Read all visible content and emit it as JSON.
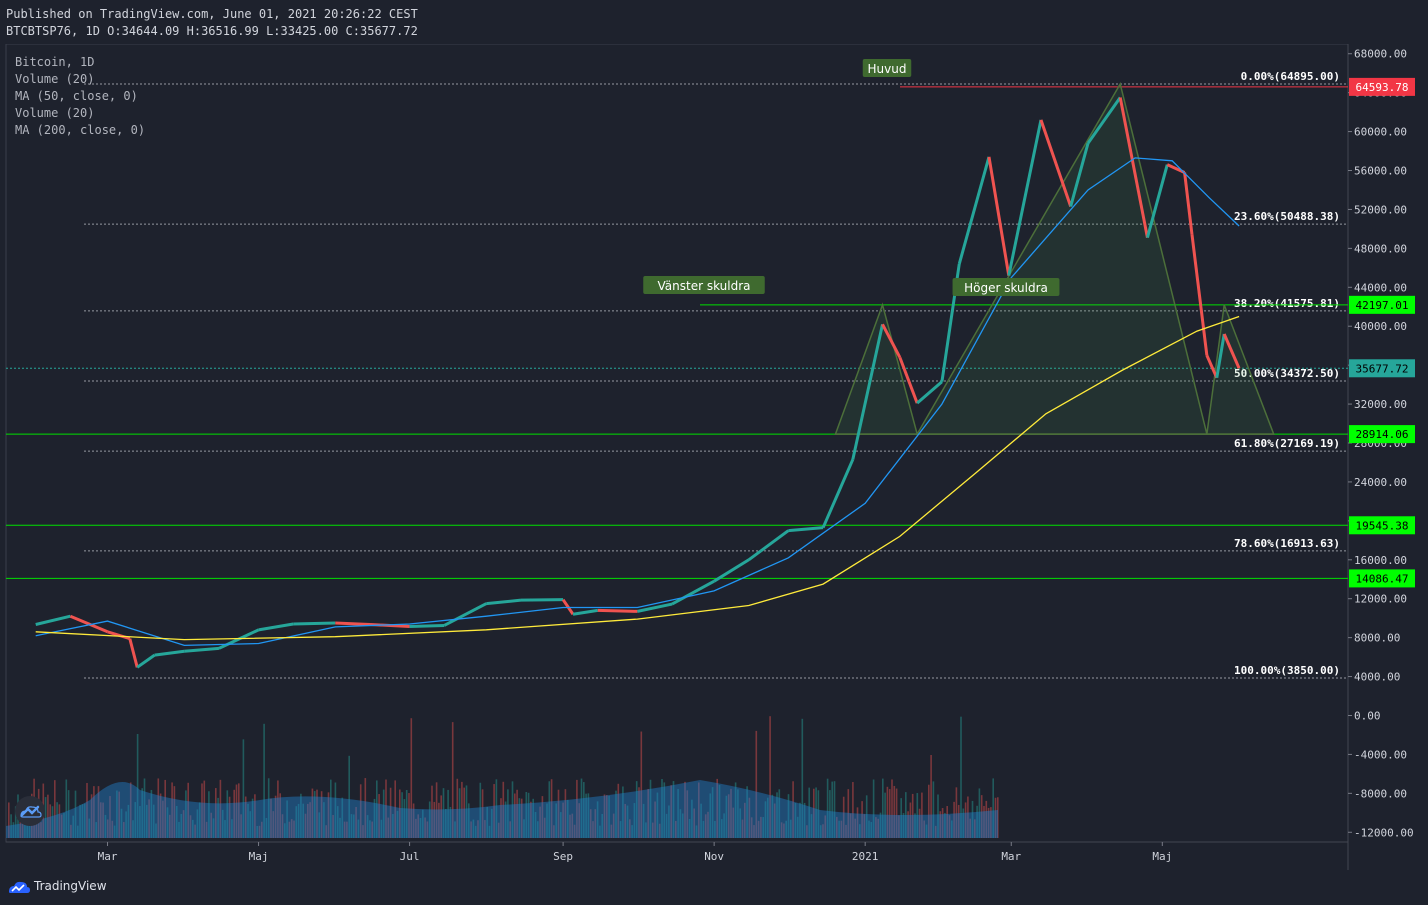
{
  "header": {
    "published": "Published on TradingView.com, June 01, 2021 20:26:22 CEST",
    "ohlc": "BTCBTSP76, 1D O:34644.09 H:36516.99 L:33425.00 C:35677.72"
  },
  "legend": [
    "Bitcoin, 1D",
    "Volume (20)",
    "MA (50, close, 0)",
    "Volume (20)",
    "MA (200, close, 0)"
  ],
  "footer": {
    "brand": "TradingView"
  },
  "chart_data": {
    "type": "line",
    "title": "Bitcoin, 1D",
    "x_axis": {
      "ticks": [
        "Mar",
        "Maj",
        "Jul",
        "Sep",
        "Nov",
        "2021",
        "Mar",
        "Maj"
      ]
    },
    "y_axis": {
      "range": [
        -13000,
        69000
      ],
      "ticks": [
        "68000.00",
        "64000.00",
        "60000.00",
        "56000.00",
        "52000.00",
        "48000.00",
        "44000.00",
        "40000.00",
        "36000.00",
        "32000.00",
        "28000.00",
        "24000.00",
        "20000.00",
        "16000.00",
        "12000.00",
        "8000.00",
        "4000.00",
        "0.00",
        "-4000.00",
        "-8000.00",
        "-12000.00"
      ],
      "tick_values": [
        68000,
        64000,
        60000,
        56000,
        52000,
        48000,
        44000,
        40000,
        36000,
        32000,
        28000,
        24000,
        20000,
        16000,
        12000,
        8000,
        4000,
        0,
        -4000,
        -8000,
        -12000
      ]
    },
    "fibonacci": [
      {
        "label": "0.00%(64895.00)",
        "value": 64895
      },
      {
        "label": "23.60%(50488.38)",
        "value": 50488.38
      },
      {
        "label": "38.20%(41575.81)",
        "value": 41575.81
      },
      {
        "label": "50.00%(34372.50)",
        "value": 34372.5
      },
      {
        "label": "61.80%(27169.19)",
        "value": 27169.19
      },
      {
        "label": "78.60%(16913.63)",
        "value": 16913.63
      },
      {
        "label": "100.00%(3850.00)",
        "value": 3850
      }
    ],
    "price_badges": [
      {
        "label": "64593.78",
        "value": 64593.78,
        "color": "#f23645"
      },
      {
        "label": "42197.01",
        "value": 42197.01,
        "color": "#00ff00"
      },
      {
        "label": "35677.72",
        "value": 35677.72,
        "color": "#26a69a"
      },
      {
        "label": "28914.06",
        "value": 28914.06,
        "color": "#00ff00"
      },
      {
        "label": "19545.38",
        "value": 19545.38,
        "color": "#00ff00"
      },
      {
        "label": "14086.47",
        "value": 14086.47,
        "color": "#00ff00"
      }
    ],
    "horizontal_lines": [
      64593.78,
      42197.01,
      28914.06,
      19545.38,
      14086.47
    ],
    "annotations": [
      {
        "text": "Huvud"
      },
      {
        "text": "Vänster skuldra"
      },
      {
        "text": "Höger skuldra"
      }
    ],
    "pattern": {
      "points": [
        {
          "date": "2020-12-20",
          "value": 28914.06
        },
        {
          "date": "2021-01-08",
          "value": 42197.01
        },
        {
          "date": "2021-01-22",
          "value": 28914.06
        },
        {
          "date": "2021-04-14",
          "value": 64895
        },
        {
          "date": "2021-05-19",
          "value": 28914.06
        },
        {
          "date": "2021-05-26",
          "value": 42197.01
        },
        {
          "date": "2021-06-15",
          "value": 28914.06
        }
      ]
    },
    "price_series": [
      {
        "date": "2020-02-01",
        "value": 9350
      },
      {
        "date": "2020-02-15",
        "value": 10200
      },
      {
        "date": "2020-03-01",
        "value": 8600
      },
      {
        "date": "2020-03-10",
        "value": 7900
      },
      {
        "date": "2020-03-13",
        "value": 4950
      },
      {
        "date": "2020-03-20",
        "value": 6200
      },
      {
        "date": "2020-04-01",
        "value": 6600
      },
      {
        "date": "2020-04-15",
        "value": 6900
      },
      {
        "date": "2020-05-01",
        "value": 8800
      },
      {
        "date": "2020-05-15",
        "value": 9400
      },
      {
        "date": "2020-06-01",
        "value": 9500
      },
      {
        "date": "2020-06-15",
        "value": 9350
      },
      {
        "date": "2020-07-01",
        "value": 9150
      },
      {
        "date": "2020-07-15",
        "value": 9250
      },
      {
        "date": "2020-08-01",
        "value": 11500
      },
      {
        "date": "2020-08-15",
        "value": 11850
      },
      {
        "date": "2020-09-01",
        "value": 11900
      },
      {
        "date": "2020-09-05",
        "value": 10400
      },
      {
        "date": "2020-09-15",
        "value": 10800
      },
      {
        "date": "2020-10-01",
        "value": 10700
      },
      {
        "date": "2020-10-15",
        "value": 11450
      },
      {
        "date": "2020-11-01",
        "value": 13800
      },
      {
        "date": "2020-11-15",
        "value": 16000
      },
      {
        "date": "2020-12-01",
        "value": 19000
      },
      {
        "date": "2020-12-15",
        "value": 19300
      },
      {
        "date": "2020-12-27",
        "value": 26300
      },
      {
        "date": "2021-01-08",
        "value": 40200
      },
      {
        "date": "2021-01-15",
        "value": 36800
      },
      {
        "date": "2021-01-22",
        "value": 32100
      },
      {
        "date": "2021-02-01",
        "value": 34300
      },
      {
        "date": "2021-02-08",
        "value": 46400
      },
      {
        "date": "2021-02-20",
        "value": 57400
      },
      {
        "date": "2021-02-28",
        "value": 45200
      },
      {
        "date": "2021-03-13",
        "value": 61200
      },
      {
        "date": "2021-03-25",
        "value": 52300
      },
      {
        "date": "2021-04-01",
        "value": 58800
      },
      {
        "date": "2021-04-14",
        "value": 63500
      },
      {
        "date": "2021-04-25",
        "value": 49100
      },
      {
        "date": "2021-05-03",
        "value": 56600
      },
      {
        "date": "2021-05-10",
        "value": 55800
      },
      {
        "date": "2021-05-13",
        "value": 49400
      },
      {
        "date": "2021-05-19",
        "value": 37000
      },
      {
        "date": "2021-05-23",
        "value": 34700
      },
      {
        "date": "2021-05-26",
        "value": 39200
      },
      {
        "date": "2021-06-01",
        "value": 35677.72
      }
    ],
    "series": [
      {
        "name": "MA (50, close, 0)",
        "color": "#2196f3",
        "points": [
          {
            "date": "2020-02-01",
            "value": 8200
          },
          {
            "date": "2020-03-01",
            "value": 9700
          },
          {
            "date": "2020-04-01",
            "value": 7200
          },
          {
            "date": "2020-05-01",
            "value": 7400
          },
          {
            "date": "2020-06-01",
            "value": 9100
          },
          {
            "date": "2020-07-01",
            "value": 9400
          },
          {
            "date": "2020-08-01",
            "value": 10200
          },
          {
            "date": "2020-09-01",
            "value": 11100
          },
          {
            "date": "2020-10-01",
            "value": 11100
          },
          {
            "date": "2020-11-01",
            "value": 12800
          },
          {
            "date": "2020-12-01",
            "value": 16200
          },
          {
            "date": "2021-01-01",
            "value": 21800
          },
          {
            "date": "2021-02-01",
            "value": 32000
          },
          {
            "date": "2021-03-01",
            "value": 45000
          },
          {
            "date": "2021-04-01",
            "value": 54000
          },
          {
            "date": "2021-04-20",
            "value": 57300
          },
          {
            "date": "2021-05-05",
            "value": 57000
          },
          {
            "date": "2021-05-20",
            "value": 53200
          },
          {
            "date": "2021-06-01",
            "value": 50300
          }
        ]
      },
      {
        "name": "MA (200, close, 0)",
        "color": "#ffeb3b",
        "points": [
          {
            "date": "2020-02-01",
            "value": 8600
          },
          {
            "date": "2020-04-01",
            "value": 7800
          },
          {
            "date": "2020-06-01",
            "value": 8100
          },
          {
            "date": "2020-08-01",
            "value": 8800
          },
          {
            "date": "2020-10-01",
            "value": 9900
          },
          {
            "date": "2020-11-15",
            "value": 11300
          },
          {
            "date": "2020-12-15",
            "value": 13500
          },
          {
            "date": "2021-01-15",
            "value": 18400
          },
          {
            "date": "2021-02-15",
            "value": 25000
          },
          {
            "date": "2021-03-15",
            "value": 31000
          },
          {
            "date": "2021-04-15",
            "value": 35500
          },
          {
            "date": "2021-05-15",
            "value": 39500
          },
          {
            "date": "2021-06-01",
            "value": 41000
          }
        ]
      }
    ]
  }
}
